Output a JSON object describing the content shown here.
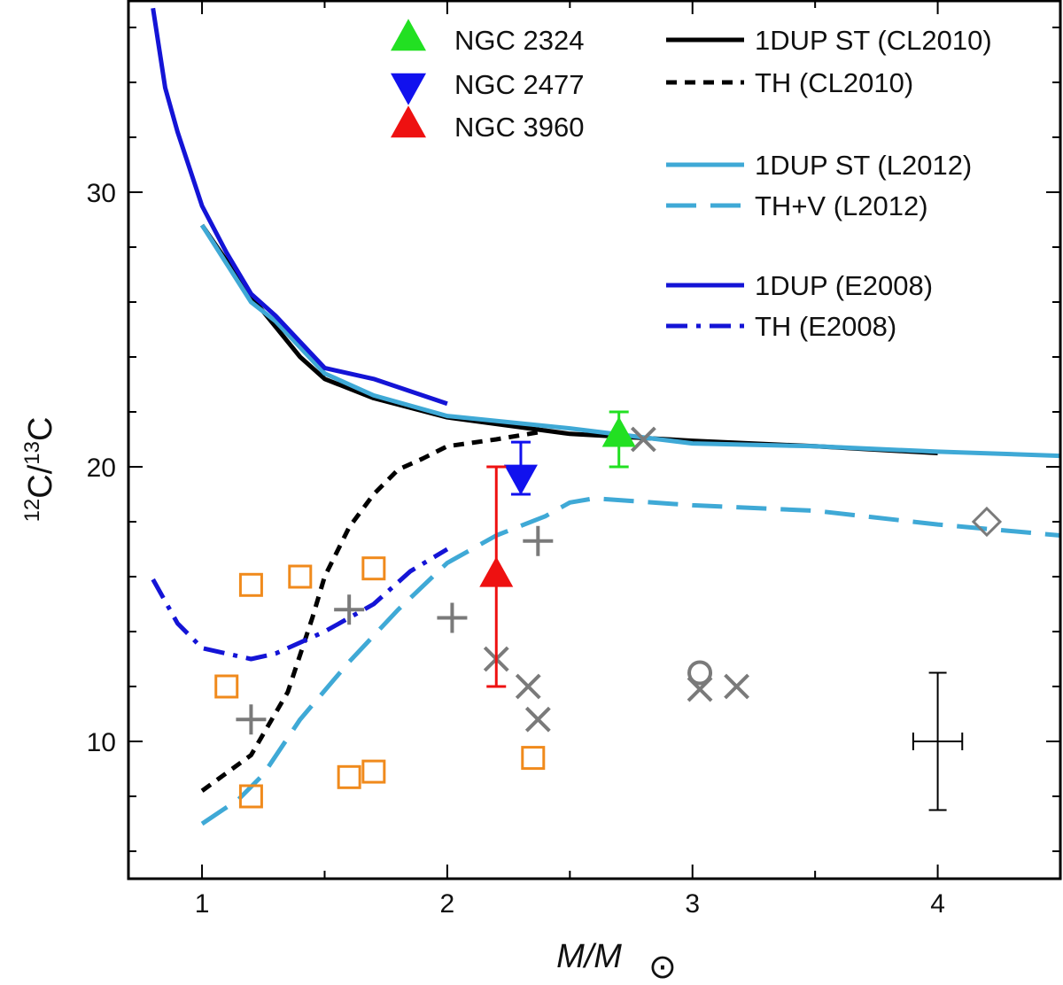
{
  "chart_data": {
    "type": "line",
    "title": "",
    "xlabel": {
      "main": "M/M",
      "sub": "⊙"
    },
    "ylabel": {
      "sup1": "12",
      "mid": "C/",
      "sup2": "13",
      "tail": "C"
    },
    "xlim": [
      0.7,
      4.5
    ],
    "ylim": [
      5,
      37
    ],
    "x_ticks": [
      1,
      2,
      3,
      4
    ],
    "x_tick_labels": [
      "1",
      "2",
      "3",
      "4"
    ],
    "y_ticks": [
      10,
      20,
      30
    ],
    "y_tick_labels": [
      "10",
      "20",
      "30"
    ],
    "series": [
      {
        "name": "1DUP ST (CL2010)",
        "color": "#000000",
        "dash": "solid",
        "width": 5,
        "points": [
          [
            1.0,
            28.8
          ],
          [
            1.2,
            26.2
          ],
          [
            1.4,
            24.0
          ],
          [
            1.5,
            23.2
          ],
          [
            1.7,
            22.5
          ],
          [
            2.0,
            21.8
          ],
          [
            2.5,
            21.2
          ],
          [
            3.0,
            20.95
          ],
          [
            3.5,
            20.75
          ],
          [
            4.0,
            20.5
          ]
        ]
      },
      {
        "name": "TH (CL2010)",
        "color": "#000000",
        "dash": "short",
        "width": 5,
        "points": [
          [
            1.0,
            8.2
          ],
          [
            1.2,
            9.5
          ],
          [
            1.35,
            11.8
          ],
          [
            1.45,
            14.5
          ],
          [
            1.5,
            16.0
          ],
          [
            1.6,
            17.8
          ],
          [
            1.7,
            19.0
          ],
          [
            1.8,
            19.9
          ],
          [
            1.9,
            20.3
          ],
          [
            2.0,
            20.75
          ],
          [
            2.2,
            21.0
          ],
          [
            2.4,
            21.3
          ]
        ]
      },
      {
        "name": "1DUP ST (L2012)",
        "color": "#3fa9d6",
        "dash": "solid",
        "width": 5,
        "points": [
          [
            1.0,
            28.8
          ],
          [
            1.2,
            26.0
          ],
          [
            1.3,
            25.3
          ],
          [
            1.5,
            23.4
          ],
          [
            1.7,
            22.6
          ],
          [
            2.0,
            21.85
          ],
          [
            2.5,
            21.4
          ],
          [
            3.0,
            20.85
          ],
          [
            3.5,
            20.75
          ],
          [
            4.0,
            20.55
          ],
          [
            4.5,
            20.4
          ]
        ]
      },
      {
        "name": "TH+V (L2012)",
        "color": "#3fa9d6",
        "dash": "long",
        "width": 5,
        "points": [
          [
            1.0,
            7.0
          ],
          [
            1.15,
            7.9
          ],
          [
            1.25,
            8.8
          ],
          [
            1.4,
            10.8
          ],
          [
            1.6,
            12.9
          ],
          [
            1.8,
            14.8
          ],
          [
            2.0,
            16.5
          ],
          [
            2.2,
            17.5
          ],
          [
            2.4,
            18.2
          ],
          [
            2.5,
            18.7
          ],
          [
            2.6,
            18.85
          ],
          [
            3.0,
            18.6
          ],
          [
            3.5,
            18.4
          ],
          [
            4.0,
            17.9
          ],
          [
            4.5,
            17.5
          ]
        ]
      },
      {
        "name": "1DUP (E2008)",
        "color": "#1414d6",
        "dash": "solid",
        "width": 5,
        "points": [
          [
            0.8,
            36.7
          ],
          [
            0.85,
            33.8
          ],
          [
            0.9,
            32.2
          ],
          [
            1.0,
            29.5
          ],
          [
            1.1,
            27.8
          ],
          [
            1.2,
            26.3
          ],
          [
            1.3,
            25.5
          ],
          [
            1.5,
            23.6
          ],
          [
            1.7,
            23.2
          ],
          [
            2.0,
            22.3
          ]
        ]
      },
      {
        "name": "TH (E2008)",
        "color": "#1414d6",
        "dash": "dashdot",
        "width": 5,
        "points": [
          [
            0.8,
            15.9
          ],
          [
            0.9,
            14.3
          ],
          [
            1.0,
            13.4
          ],
          [
            1.1,
            13.2
          ],
          [
            1.2,
            13.0
          ],
          [
            1.3,
            13.2
          ],
          [
            1.5,
            14.0
          ],
          [
            1.7,
            15.0
          ],
          [
            1.85,
            16.2
          ],
          [
            2.0,
            17.0
          ]
        ]
      }
    ],
    "clusters": [
      {
        "name": "NGC 2324",
        "marker": "triangle-up",
        "color": "#22e022",
        "x": 2.7,
        "y": 21.1,
        "yerr_low": 20.0,
        "yerr_high": 22.0
      },
      {
        "name": "NGC 2477",
        "marker": "triangle-down",
        "color": "#1111ee",
        "x": 2.3,
        "y": 19.7,
        "yerr_low": 19.0,
        "yerr_high": 20.9
      },
      {
        "name": "NGC 3960",
        "marker": "triangle-up",
        "color": "#ee1111",
        "x": 2.2,
        "y": 16.0,
        "yerr_low": 12.0,
        "yerr_high": 20.0
      }
    ],
    "field_stars": {
      "squares": {
        "color": "#f08a1c",
        "points": [
          [
            1.1,
            12.0
          ],
          [
            1.2,
            15.7
          ],
          [
            1.4,
            16.0
          ],
          [
            1.7,
            16.3
          ],
          [
            1.2,
            8.0
          ],
          [
            1.6,
            8.7
          ],
          [
            1.7,
            8.9
          ],
          [
            2.35,
            9.4
          ]
        ]
      },
      "plus": {
        "color": "#7a7a7a",
        "points": [
          [
            1.2,
            10.8
          ],
          [
            1.6,
            14.8
          ],
          [
            2.02,
            14.5
          ],
          [
            2.37,
            17.3
          ]
        ]
      },
      "cross": {
        "color": "#7a7a7a",
        "points": [
          [
            2.2,
            13.0
          ],
          [
            2.33,
            12.0
          ],
          [
            2.37,
            10.8
          ],
          [
            2.8,
            21.0
          ],
          [
            3.03,
            11.9
          ],
          [
            3.18,
            12.0
          ]
        ]
      },
      "circle": {
        "color": "#7a7a7a",
        "points": [
          [
            3.03,
            12.5
          ]
        ]
      },
      "diamond": {
        "color": "#7a7a7a",
        "points": [
          [
            4.2,
            18.0
          ]
        ]
      }
    },
    "typical_error": {
      "x": 4.0,
      "y": 10.0,
      "x_low": 3.9,
      "x_high": 4.1,
      "y_low": 7.5,
      "y_high": 12.5
    },
    "legend": {
      "markers": [
        "NGC 2324",
        "NGC 2477",
        "NGC 3960"
      ],
      "lines": [
        "1DUP ST (CL2010)",
        "TH (CL2010)",
        "1DUP ST (L2012)",
        "TH+V (L2012)",
        "1DUP (E2008)",
        "TH (E2008)"
      ]
    }
  }
}
